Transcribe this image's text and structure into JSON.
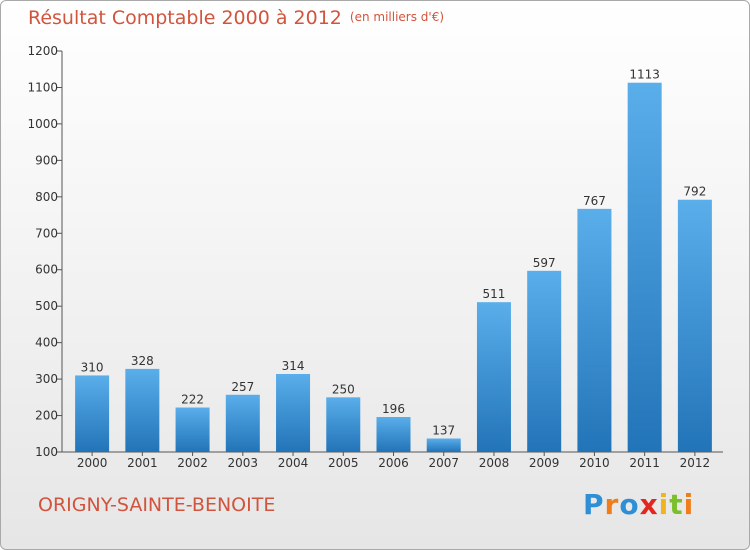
{
  "title": "Résultat Comptable 2000 à 2012",
  "subtitle": "(en milliers d'€)",
  "commune": "ORIGNY-SAINTE-BENOITE",
  "brand": {
    "letters": [
      "P",
      "r",
      "o",
      "x",
      "i",
      "t",
      "i"
    ],
    "colors": [
      "#2e8fd6",
      "#f07d1a",
      "#2e8fd6",
      "#e52620",
      "#f0b41e",
      "#7bbf2a",
      "#f07d1a"
    ]
  },
  "colors": {
    "title": "#d2543c",
    "bar_top": "#5aaeea",
    "bar_bottom": "#2274b8"
  },
  "chart_data": {
    "type": "bar",
    "title": "Résultat Comptable 2000 à 2012",
    "subtitle": "(en milliers d'€)",
    "categories": [
      "2000",
      "2001",
      "2002",
      "2003",
      "2004",
      "2005",
      "2006",
      "2007",
      "2008",
      "2009",
      "2010",
      "2011",
      "2012"
    ],
    "values": [
      310,
      328,
      222,
      257,
      314,
      250,
      196,
      137,
      511,
      597,
      767,
      1113,
      792
    ],
    "ylim": [
      100,
      1200
    ],
    "yticks": [
      100,
      200,
      300,
      400,
      500,
      600,
      700,
      800,
      900,
      1000,
      1100,
      1200
    ],
    "grid": false,
    "data_labels": true
  }
}
